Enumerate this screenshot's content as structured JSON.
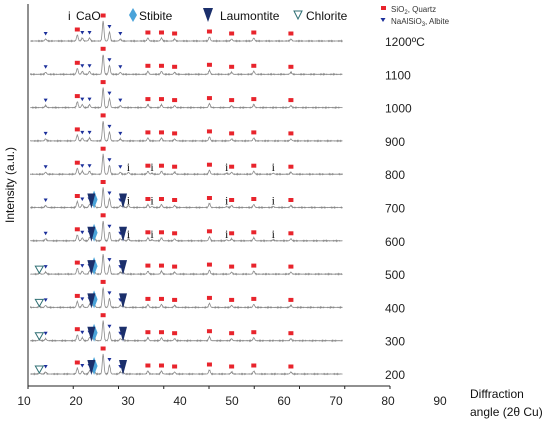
{
  "chart_data": {
    "type": "line",
    "xlabel_line1": "Diffraction",
    "xlabel_line2": "angle (2θ   Cu)",
    "ylabel": "Intensity (a.u.)",
    "xlim": [
      10,
      90
    ],
    "x_ticks": [
      10,
      20,
      30,
      40,
      50,
      60,
      70,
      80,
      90
    ],
    "grid": false,
    "temperatures": [
      "1200ºC",
      "1100",
      "1000",
      "900",
      "800",
      "700",
      "600",
      "500",
      "400",
      "300",
      "200"
    ],
    "peak_sets": {
      "quartz": [
        20.9,
        26.6,
        36.5,
        39.5,
        42.4,
        50.1,
        55.0,
        59.9,
        68.1
      ],
      "albite": [
        13.9,
        22.0,
        23.6,
        28.0,
        30.4
      ],
      "stilbite": [
        24.6
      ],
      "laumontite": [
        24.0,
        31.0
      ],
      "chlorite": [
        12.5
      ],
      "cao": [
        32.2,
        37.4,
        53.9,
        64.2
      ]
    },
    "series": [
      {
        "temp": "1200ºC",
        "phases": [
          "quartz",
          "albite"
        ]
      },
      {
        "temp": "1100",
        "phases": [
          "quartz",
          "albite"
        ]
      },
      {
        "temp": "1000",
        "phases": [
          "quartz",
          "albite"
        ]
      },
      {
        "temp": "900",
        "phases": [
          "quartz",
          "albite"
        ]
      },
      {
        "temp": "800",
        "phases": [
          "quartz",
          "albite",
          "cao"
        ]
      },
      {
        "temp": "700",
        "phases": [
          "quartz",
          "albite",
          "stilbite",
          "laumontite",
          "cao"
        ]
      },
      {
        "temp": "600",
        "phases": [
          "quartz",
          "albite",
          "stilbite",
          "laumontite",
          "cao"
        ]
      },
      {
        "temp": "500",
        "phases": [
          "quartz",
          "albite",
          "stilbite",
          "laumontite",
          "chlorite"
        ]
      },
      {
        "temp": "400",
        "phases": [
          "quartz",
          "albite",
          "stilbite",
          "laumontite",
          "chlorite"
        ]
      },
      {
        "temp": "300",
        "phases": [
          "quartz",
          "albite",
          "stilbite",
          "laumontite",
          "chlorite"
        ]
      },
      {
        "temp": "200",
        "phases": [
          "quartz",
          "albite",
          "stilbite",
          "laumontite",
          "chlorite"
        ]
      }
    ],
    "legend": [
      {
        "key": "cao",
        "symbol": "i",
        "label": "CaO"
      },
      {
        "key": "stilbite",
        "symbol": "◆",
        "label": "Stibite",
        "color": "#4aa3d9"
      },
      {
        "key": "laumontite",
        "symbol": "▼",
        "label": "Laumontite",
        "color": "#1b2f6b"
      },
      {
        "key": "chlorite",
        "symbol": "▽",
        "label": "Chlorite",
        "color": "#2f6f73"
      },
      {
        "key": "quartz",
        "symbol": "■",
        "label_html": "SiO<tspan dy='2' font-size='6'>2</tspan><tspan dy='-2'>, Quartz</tspan>",
        "color": "#e8242c"
      },
      {
        "key": "albite",
        "symbol": "▼",
        "label_html": "NaAlSiO<tspan dy='2' font-size='6'>3</tspan><tspan dy='-2'>, Albite</tspan>",
        "color": "#1b2f9a"
      }
    ],
    "colors": {
      "trace": "#8a8a8a",
      "quartz": "#e8242c",
      "albite": "#1b2f9a",
      "stilbite": "#4aa3d9",
      "laumontite": "#1b2f6b",
      "chlorite": "#2f6f73",
      "axis": "#222222"
    }
  }
}
